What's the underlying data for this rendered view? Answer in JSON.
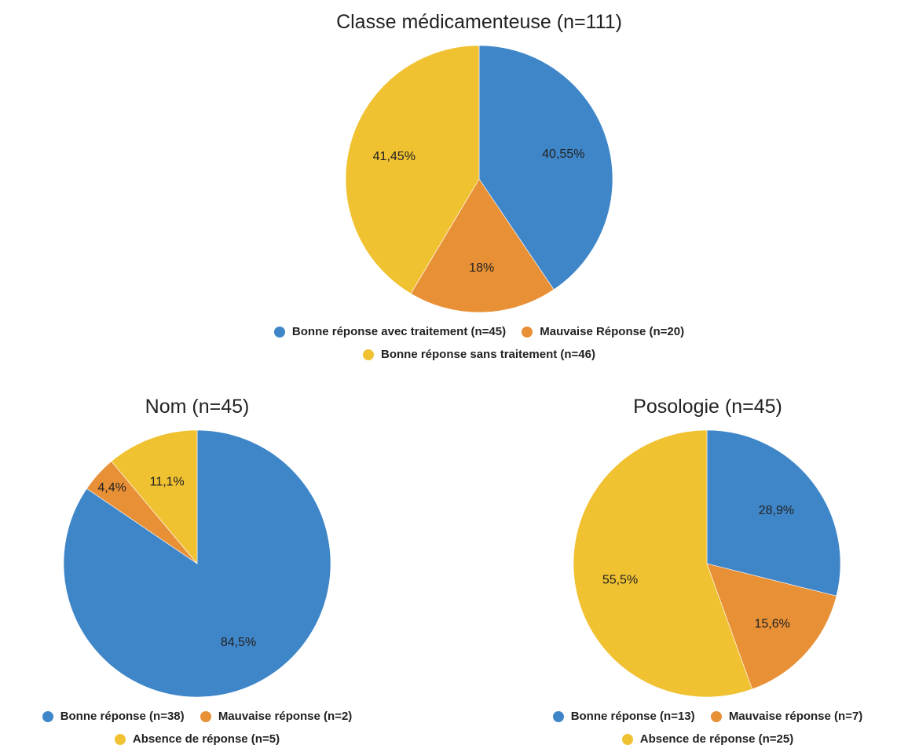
{
  "colors": {
    "blue": "#3f86c8",
    "orange": "#e89036",
    "yellow": "#f0c232"
  },
  "chart_data": [
    {
      "type": "pie",
      "title": "Classe médicamenteuse (n=111)",
      "slices": [
        {
          "label": "Bonne réponse avec traitement (n=45)",
          "value": 40.55,
          "display": "40,55%",
          "color": "#3f86c8"
        },
        {
          "label": "Mauvaise Réponse (n=20)",
          "value": 18,
          "display": "18%",
          "color": "#e89036"
        },
        {
          "label": "Bonne réponse sans traitement (n=46)",
          "value": 41.45,
          "display": "41,45%",
          "color": "#f0c232"
        }
      ],
      "legend_position": "bottom"
    },
    {
      "type": "pie",
      "title": "Nom (n=45)",
      "slices": [
        {
          "label": "Bonne réponse (n=38)",
          "value": 84.5,
          "display": "84,5%",
          "color": "#3f86c8"
        },
        {
          "label": "Mauvaise réponse (n=2)",
          "value": 4.4,
          "display": "4,4%",
          "color": "#e89036"
        },
        {
          "label": "Absence de réponse (n=5)",
          "value": 11.1,
          "display": "11,1%",
          "color": "#f0c232"
        }
      ],
      "legend_position": "bottom"
    },
    {
      "type": "pie",
      "title": "Posologie (n=45)",
      "slices": [
        {
          "label": "Bonne réponse (n=13)",
          "value": 28.9,
          "display": "28,9%",
          "color": "#3f86c8"
        },
        {
          "label": "Mauvaise réponse (n=7)",
          "value": 15.6,
          "display": "15,6%",
          "color": "#e89036"
        },
        {
          "label": "Absence de réponse (n=25)",
          "value": 55.5,
          "display": "55,5%",
          "color": "#f0c232"
        }
      ],
      "legend_position": "bottom"
    }
  ]
}
